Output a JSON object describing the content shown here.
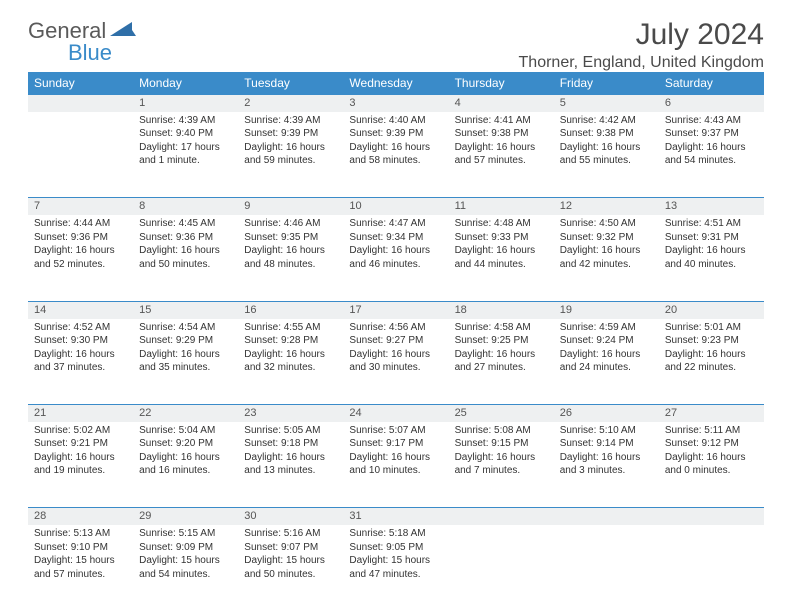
{
  "branding": {
    "word1": "General",
    "word2": "Blue",
    "logo_color": "#2f6fa8"
  },
  "title": "July 2024",
  "location": "Thorner, England, United Kingdom",
  "colors": {
    "header_bg": "#3a8bc9",
    "header_text": "#ffffff",
    "daynum_bg": "#eef0f1",
    "row_divider": "#3a8bc9",
    "text": "#333333"
  },
  "day_headers": [
    "Sunday",
    "Monday",
    "Tuesday",
    "Wednesday",
    "Thursday",
    "Friday",
    "Saturday"
  ],
  "weeks": [
    [
      null,
      {
        "n": "1",
        "sr": "4:39 AM",
        "ss": "9:40 PM",
        "dl": "17 hours and 1 minute."
      },
      {
        "n": "2",
        "sr": "4:39 AM",
        "ss": "9:39 PM",
        "dl": "16 hours and 59 minutes."
      },
      {
        "n": "3",
        "sr": "4:40 AM",
        "ss": "9:39 PM",
        "dl": "16 hours and 58 minutes."
      },
      {
        "n": "4",
        "sr": "4:41 AM",
        "ss": "9:38 PM",
        "dl": "16 hours and 57 minutes."
      },
      {
        "n": "5",
        "sr": "4:42 AM",
        "ss": "9:38 PM",
        "dl": "16 hours and 55 minutes."
      },
      {
        "n": "6",
        "sr": "4:43 AM",
        "ss": "9:37 PM",
        "dl": "16 hours and 54 minutes."
      }
    ],
    [
      {
        "n": "7",
        "sr": "4:44 AM",
        "ss": "9:36 PM",
        "dl": "16 hours and 52 minutes."
      },
      {
        "n": "8",
        "sr": "4:45 AM",
        "ss": "9:36 PM",
        "dl": "16 hours and 50 minutes."
      },
      {
        "n": "9",
        "sr": "4:46 AM",
        "ss": "9:35 PM",
        "dl": "16 hours and 48 minutes."
      },
      {
        "n": "10",
        "sr": "4:47 AM",
        "ss": "9:34 PM",
        "dl": "16 hours and 46 minutes."
      },
      {
        "n": "11",
        "sr": "4:48 AM",
        "ss": "9:33 PM",
        "dl": "16 hours and 44 minutes."
      },
      {
        "n": "12",
        "sr": "4:50 AM",
        "ss": "9:32 PM",
        "dl": "16 hours and 42 minutes."
      },
      {
        "n": "13",
        "sr": "4:51 AM",
        "ss": "9:31 PM",
        "dl": "16 hours and 40 minutes."
      }
    ],
    [
      {
        "n": "14",
        "sr": "4:52 AM",
        "ss": "9:30 PM",
        "dl": "16 hours and 37 minutes."
      },
      {
        "n": "15",
        "sr": "4:54 AM",
        "ss": "9:29 PM",
        "dl": "16 hours and 35 minutes."
      },
      {
        "n": "16",
        "sr": "4:55 AM",
        "ss": "9:28 PM",
        "dl": "16 hours and 32 minutes."
      },
      {
        "n": "17",
        "sr": "4:56 AM",
        "ss": "9:27 PM",
        "dl": "16 hours and 30 minutes."
      },
      {
        "n": "18",
        "sr": "4:58 AM",
        "ss": "9:25 PM",
        "dl": "16 hours and 27 minutes."
      },
      {
        "n": "19",
        "sr": "4:59 AM",
        "ss": "9:24 PM",
        "dl": "16 hours and 24 minutes."
      },
      {
        "n": "20",
        "sr": "5:01 AM",
        "ss": "9:23 PM",
        "dl": "16 hours and 22 minutes."
      }
    ],
    [
      {
        "n": "21",
        "sr": "5:02 AM",
        "ss": "9:21 PM",
        "dl": "16 hours and 19 minutes."
      },
      {
        "n": "22",
        "sr": "5:04 AM",
        "ss": "9:20 PM",
        "dl": "16 hours and 16 minutes."
      },
      {
        "n": "23",
        "sr": "5:05 AM",
        "ss": "9:18 PM",
        "dl": "16 hours and 13 minutes."
      },
      {
        "n": "24",
        "sr": "5:07 AM",
        "ss": "9:17 PM",
        "dl": "16 hours and 10 minutes."
      },
      {
        "n": "25",
        "sr": "5:08 AM",
        "ss": "9:15 PM",
        "dl": "16 hours and 7 minutes."
      },
      {
        "n": "26",
        "sr": "5:10 AM",
        "ss": "9:14 PM",
        "dl": "16 hours and 3 minutes."
      },
      {
        "n": "27",
        "sr": "5:11 AM",
        "ss": "9:12 PM",
        "dl": "16 hours and 0 minutes."
      }
    ],
    [
      {
        "n": "28",
        "sr": "5:13 AM",
        "ss": "9:10 PM",
        "dl": "15 hours and 57 minutes."
      },
      {
        "n": "29",
        "sr": "5:15 AM",
        "ss": "9:09 PM",
        "dl": "15 hours and 54 minutes."
      },
      {
        "n": "30",
        "sr": "5:16 AM",
        "ss": "9:07 PM",
        "dl": "15 hours and 50 minutes."
      },
      {
        "n": "31",
        "sr": "5:18 AM",
        "ss": "9:05 PM",
        "dl": "15 hours and 47 minutes."
      },
      null,
      null,
      null
    ]
  ],
  "labels": {
    "sunrise": "Sunrise:",
    "sunset": "Sunset:",
    "daylight": "Daylight:"
  }
}
